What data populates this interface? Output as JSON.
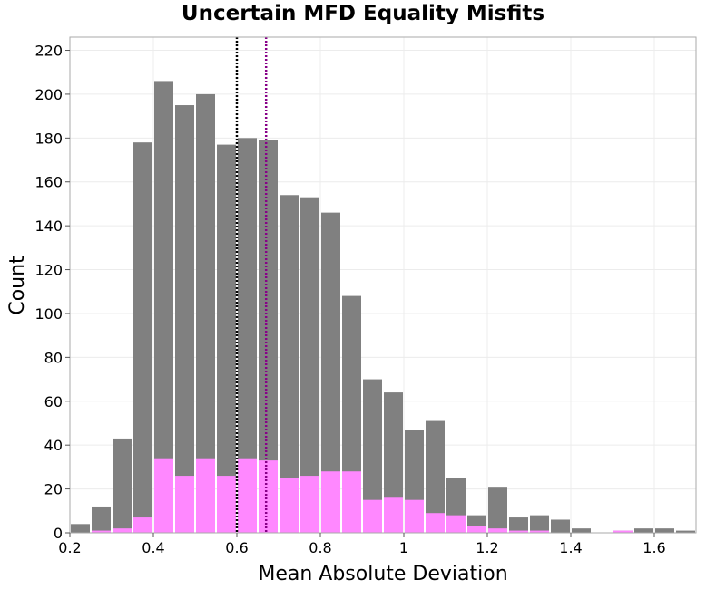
{
  "chart_data": {
    "type": "bar",
    "title": "Uncertain MFD Equality Misfits",
    "xlabel": "Mean Absolute Deviation",
    "ylabel": "Count",
    "xlim": [
      0.2,
      1.7
    ],
    "ylim": [
      0,
      226
    ],
    "bin_width": 0.05,
    "bin_starts": [
      0.2,
      0.25,
      0.3,
      0.35,
      0.4,
      0.45,
      0.5,
      0.55,
      0.6,
      0.65,
      0.7,
      0.75,
      0.8,
      0.85,
      0.9,
      0.95,
      1.0,
      1.05,
      1.1,
      1.15,
      1.2,
      1.25,
      1.3,
      1.35,
      1.4,
      1.45,
      1.5,
      1.55,
      1.6,
      1.65
    ],
    "x_ticks": [
      0.2,
      0.4,
      0.6,
      0.8,
      1.0,
      1.2,
      1.4,
      1.6
    ],
    "x_tick_labels": [
      "0.2",
      "0.4",
      "0.6",
      "0.8",
      "1",
      "1.2",
      "1.4",
      "1.6"
    ],
    "y_ticks": [
      0,
      20,
      40,
      60,
      80,
      100,
      120,
      140,
      160,
      180,
      200,
      220
    ],
    "y_tick_labels": [
      "0",
      "20",
      "40",
      "60",
      "80",
      "100",
      "120",
      "140",
      "160",
      "180",
      "200",
      "220"
    ],
    "grid": true,
    "series": [
      {
        "color": "#808080",
        "values": [
          4,
          12,
          43,
          178,
          206,
          195,
          200,
          177,
          180,
          179,
          154,
          153,
          146,
          108,
          70,
          64,
          47,
          51,
          25,
          8,
          21,
          7,
          8,
          6,
          2,
          0,
          1,
          2,
          2,
          1
        ]
      },
      {
        "color": "#ff88ff",
        "values": [
          0,
          1,
          2,
          7,
          34,
          26,
          34,
          26,
          34,
          33,
          25,
          26,
          28,
          28,
          15,
          16,
          15,
          9,
          8,
          3,
          2,
          1,
          1,
          0,
          0,
          0,
          1,
          0,
          0,
          0
        ]
      }
    ],
    "vlines": [
      {
        "x": 0.6,
        "color": "#000000",
        "style": "dotted"
      },
      {
        "x": 0.67,
        "color": "#880088",
        "style": "dotted"
      }
    ]
  }
}
